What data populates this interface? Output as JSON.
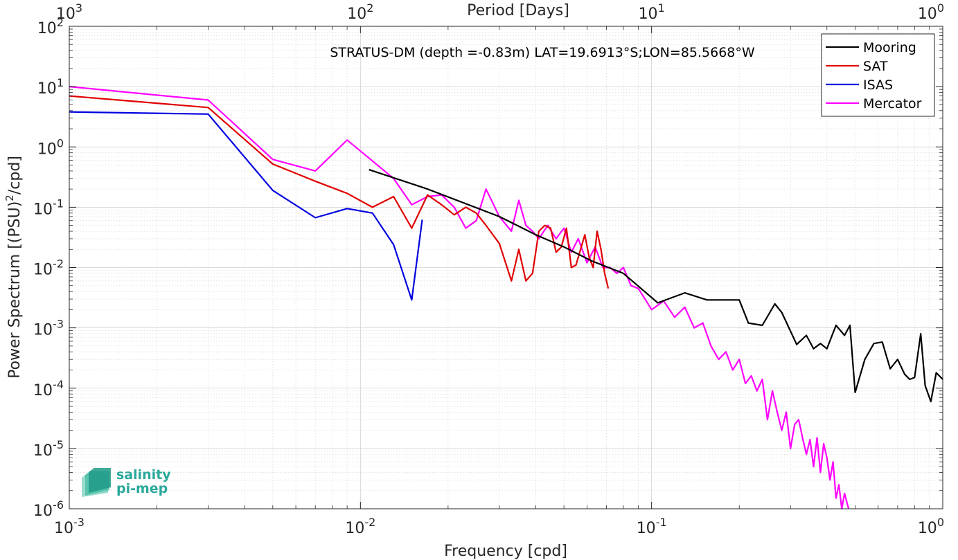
{
  "chart_data": {
    "type": "line",
    "title": "STRATUS-DM (depth =-0.83m) LAT=19.6913°S;LON=85.5668°W",
    "xlabel": "Frequency [cpd]",
    "ylabel": "Power Spectrum [(PSU)^2/cpd]",
    "top_xlabel": "Period [Days]",
    "xscale": "log",
    "yscale": "log",
    "xlim": [
      0.001,
      1
    ],
    "ylim": [
      1e-06,
      100
    ],
    "grid": true,
    "legend_position": "top-right",
    "x_ticks": [
      {
        "value": 0.001,
        "base": "10",
        "exp": "-3"
      },
      {
        "value": 0.01,
        "base": "10",
        "exp": "-2"
      },
      {
        "value": 0.1,
        "base": "10",
        "exp": "-1"
      },
      {
        "value": 1,
        "base": "10",
        "exp": "0"
      }
    ],
    "top_ticks": [
      {
        "value": 0.001,
        "base": "10",
        "exp": "3"
      },
      {
        "value": 0.01,
        "base": "10",
        "exp": "2"
      },
      {
        "value": 0.1,
        "base": "10",
        "exp": "1"
      },
      {
        "value": 1,
        "base": "10",
        "exp": "0"
      }
    ],
    "y_ticks": [
      {
        "value": 100,
        "base": "10",
        "exp": "2"
      },
      {
        "value": 10,
        "base": "10",
        "exp": "1"
      },
      {
        "value": 1,
        "base": "10",
        "exp": "0"
      },
      {
        "value": 0.1,
        "base": "10",
        "exp": "-1"
      },
      {
        "value": 0.01,
        "base": "10",
        "exp": "-2"
      },
      {
        "value": 0.001,
        "base": "10",
        "exp": "-3"
      },
      {
        "value": 0.0001,
        "base": "10",
        "exp": "-4"
      },
      {
        "value": 1e-05,
        "base": "10",
        "exp": "-5"
      },
      {
        "value": 1e-06,
        "base": "10",
        "exp": "-6"
      }
    ],
    "series": [
      {
        "name": "Mooring",
        "color": "#000000",
        "x": [
          0.0107,
          0.017,
          0.03,
          0.04,
          0.05,
          0.062,
          0.08,
          0.105,
          0.13,
          0.155,
          0.2,
          0.215,
          0.24,
          0.265,
          0.28,
          0.315,
          0.34,
          0.36,
          0.38,
          0.4,
          0.43,
          0.46,
          0.48,
          0.5,
          0.54,
          0.58,
          0.62,
          0.66,
          0.7,
          0.74,
          0.77,
          0.8,
          0.84,
          0.87,
          0.91,
          0.95,
          1.0
        ],
        "y": [
          0.42,
          0.2,
          0.07,
          0.035,
          0.022,
          0.013,
          0.008,
          0.0026,
          0.0038,
          0.0029,
          0.0029,
          0.0012,
          0.0011,
          0.0025,
          0.0018,
          0.00053,
          0.00075,
          0.00045,
          0.00055,
          0.00045,
          0.0011,
          0.00075,
          0.0011,
          8.5e-05,
          0.0003,
          0.00055,
          0.00058,
          0.00021,
          0.0003,
          0.00017,
          0.00014,
          0.00015,
          0.0008,
          0.00011,
          6e-05,
          0.00018,
          0.00014
        ]
      },
      {
        "name": "SAT",
        "color": "#e00000",
        "x": [
          0.001,
          0.003,
          0.005,
          0.007,
          0.009,
          0.011,
          0.013,
          0.015,
          0.017,
          0.019,
          0.021,
          0.023,
          0.025,
          0.027,
          0.03,
          0.033,
          0.035,
          0.037,
          0.039,
          0.041,
          0.043,
          0.045,
          0.047,
          0.049,
          0.051,
          0.053,
          0.055,
          0.057,
          0.059,
          0.061,
          0.063,
          0.065,
          0.067,
          0.069,
          0.071
        ],
        "y": [
          7.0,
          4.5,
          0.52,
          0.27,
          0.17,
          0.1,
          0.15,
          0.045,
          0.16,
          0.11,
          0.075,
          0.1,
          0.08,
          0.05,
          0.025,
          0.006,
          0.02,
          0.006,
          0.008,
          0.04,
          0.05,
          0.045,
          0.018,
          0.022,
          0.045,
          0.01,
          0.011,
          0.02,
          0.035,
          0.015,
          0.01,
          0.04,
          0.02,
          0.008,
          0.0045
        ]
      },
      {
        "name": "ISAS",
        "color": "#0000e0",
        "x": [
          0.001,
          0.003,
          0.005,
          0.007,
          0.009,
          0.011,
          0.013,
          0.015,
          0.0163
        ],
        "y": [
          3.8,
          3.5,
          0.19,
          0.067,
          0.095,
          0.08,
          0.024,
          0.0029,
          0.062
        ]
      },
      {
        "name": "Mercator",
        "color": "#ff00ff",
        "x": [
          0.001,
          0.003,
          0.005,
          0.007,
          0.009,
          0.013,
          0.015,
          0.017,
          0.019,
          0.021,
          0.023,
          0.025,
          0.027,
          0.03,
          0.033,
          0.035,
          0.037,
          0.039,
          0.041,
          0.044,
          0.047,
          0.05,
          0.053,
          0.056,
          0.06,
          0.064,
          0.068,
          0.072,
          0.076,
          0.08,
          0.085,
          0.09,
          0.095,
          0.1,
          0.11,
          0.12,
          0.13,
          0.14,
          0.15,
          0.16,
          0.17,
          0.18,
          0.19,
          0.2,
          0.21,
          0.22,
          0.23,
          0.24,
          0.25,
          0.26,
          0.27,
          0.28,
          0.29,
          0.3,
          0.31,
          0.32,
          0.33,
          0.34,
          0.35,
          0.36,
          0.37,
          0.38,
          0.39,
          0.4,
          0.41,
          0.42,
          0.43,
          0.44,
          0.45,
          0.46,
          0.47,
          0.475
        ],
        "y": [
          10.0,
          6.0,
          0.62,
          0.4,
          1.3,
          0.3,
          0.11,
          0.15,
          0.16,
          0.1,
          0.045,
          0.06,
          0.2,
          0.07,
          0.04,
          0.13,
          0.05,
          0.04,
          0.03,
          0.05,
          0.03,
          0.045,
          0.018,
          0.03,
          0.012,
          0.022,
          0.01,
          0.01,
          0.008,
          0.01,
          0.005,
          0.0045,
          0.003,
          0.002,
          0.0028,
          0.0015,
          0.0022,
          0.001,
          0.0012,
          0.0005,
          0.0003,
          0.0004,
          0.0002,
          0.0003,
          0.00012,
          0.00016,
          9e-05,
          0.00014,
          3e-05,
          9e-05,
          4e-05,
          2e-05,
          4e-05,
          1e-05,
          2.5e-05,
          3e-05,
          1.5e-05,
          8e-06,
          1.4e-05,
          5e-06,
          1.5e-05,
          4e-06,
          1.2e-05,
          7e-06,
          3e-06,
          6e-06,
          1.5e-06,
          2.5e-06,
          1e-06,
          1.8e-06,
          1.2e-06,
          1e-06
        ]
      }
    ]
  },
  "logo": {
    "line1": "salinity",
    "line2": "pi-mep"
  }
}
